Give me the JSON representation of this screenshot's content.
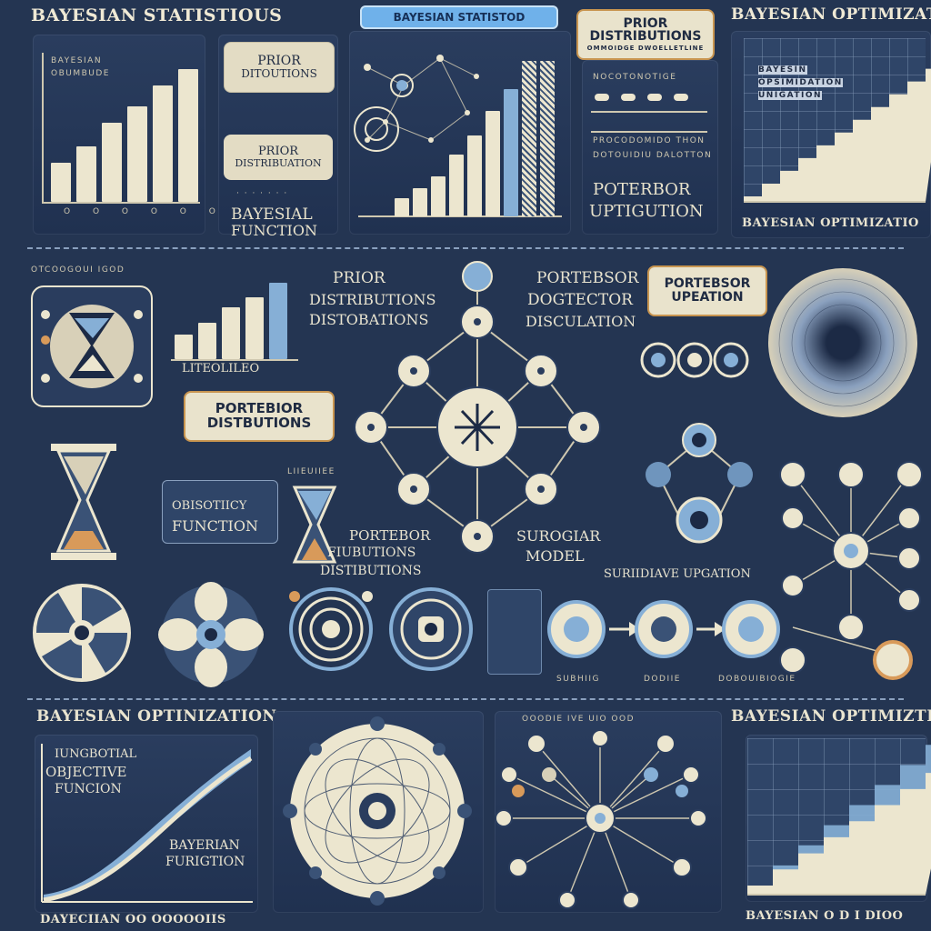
{
  "colors": {
    "background": "#243552",
    "cream": "#ece6cf",
    "blue": "#86afd6",
    "orange": "#d89a5a",
    "navy": "#1c2a45"
  },
  "header": {
    "title_left": "BAYESIAN STATISTIOUS",
    "badge_center": "BAYESIAN STATISTOD",
    "prior_tag": "PRIOR DISTRIBUTIONS",
    "prior_tag_sub": "OMMOIDGE DWOELLETLINE",
    "title_right": "BAYESIAN OPTIMIZATIO"
  },
  "panel_top_left": {
    "chart_label_1": "BAYESIAN",
    "chart_label_2": "OBUMBUDE",
    "bar_values": [
      0.26,
      0.37,
      0.53,
      0.64,
      0.78,
      0.89
    ],
    "tick_label": "O O O O O O"
  },
  "panel_prior": {
    "label_1": "PRIOR",
    "label_2": "DITOUTIONS",
    "label_3": "PRIOR",
    "label_4": "DISTRIBUATION",
    "label_5": "BAYESIAL",
    "label_6": "FUNCTION"
  },
  "panel_center_top": {
    "bar_values": [
      0.12,
      0.18,
      0.26,
      0.4,
      0.52,
      0.68,
      0.82,
      1.0,
      1.0
    ]
  },
  "panel_posterior": {
    "label_1": "POTERBOR",
    "label_2": "UPTIGUTION",
    "line_1": "NOCOTONOTIGE",
    "line_2": "PROCODOMIDO THON",
    "line_3": "DOTOUIDIU DALOTTON"
  },
  "panel_top_right": {
    "label_1": "BAYESIN",
    "label_2": "OPSIMIDATION",
    "label_3": "UNIGATION",
    "footer": "BAYESIAN OPTIMIZATIO",
    "fill_fraction": 0.78
  },
  "middle": {
    "hourglass_caption": "OTCOOGOUI IGOD",
    "bars_caption": "LITEOLILEO",
    "bar_values": [
      0.28,
      0.42,
      0.6,
      0.72,
      0.88
    ],
    "prior_1": "PRIOR",
    "prior_2": "DISTRIBUTIONS",
    "prior_3": "DISTOBATIONS",
    "portr_1": "PORTEBSOR",
    "portr_2": "DOGTECTOR",
    "portr_3": "DISCULATION",
    "update_tag_1": "PORTEBSOR",
    "update_tag_2": "UPEATION",
    "posterior_tag_1": "PORTEBIOR",
    "posterior_tag_2": "DISTBUTIONS",
    "objective_1": "OBISOTIICY",
    "objective_2": "FUNCTION",
    "post_dist_1": "PORTEBOR",
    "post_dist_2": "FIUBUTIONS",
    "post_dist_3": "DISTIBUTIONS",
    "surrogate_1": "SUROGIAR",
    "surrogate_2": "MODEL",
    "surrogate_update": "SURIIDIAVE UPGATION",
    "flow_caption_1": "SUBHIIG",
    "flow_caption_2": "DODIIE",
    "flow_caption_3": "DOBOUIBIOGIE",
    "small_caption": "LIIEUIIEE"
  },
  "bottom": {
    "left_title": "BAYESIAN OPTINIZATION",
    "obj_1": "IUNGBOTIAL",
    "obj_2": "OBJECTIVE",
    "obj_3": "FUNCION",
    "bay_1": "BAYERIAN",
    "bay_2": "FURIGTION",
    "footer_left": "DAYECIIAN OO OOOOOIIS",
    "network_caption": "OOODIE IVE UIO OOD",
    "right_title": "BAYESIAN OPTIMIZTIO",
    "footer_right": "BAYESIAN O D I DIOO",
    "right_fill_fraction": 0.72
  }
}
